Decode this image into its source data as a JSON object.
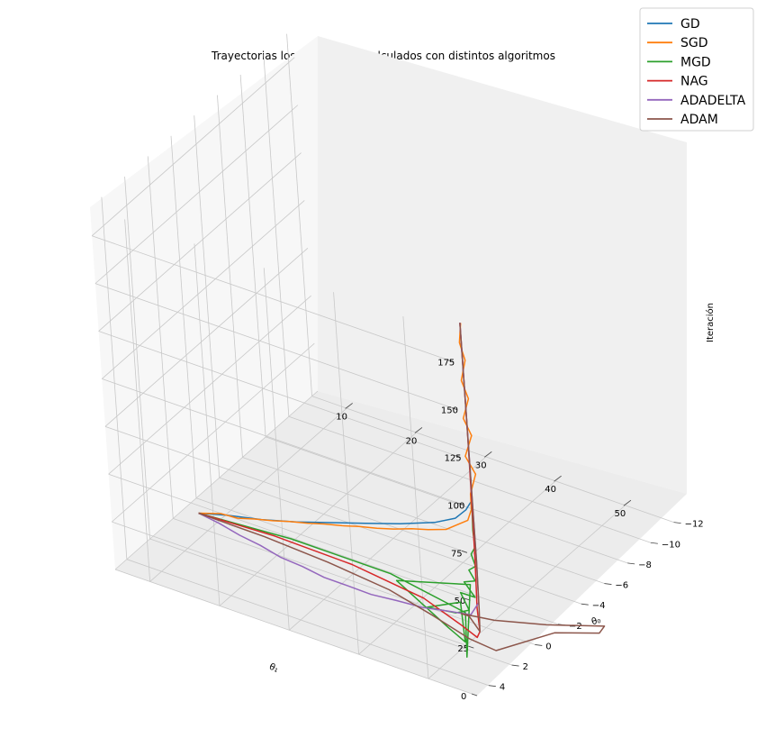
{
  "chart_data": {
    "type": "line",
    "title": "Trayectorias los parámetros calculados con distintos algoritmos",
    "xlabel": "θ₁",
    "ylabel": "θ₀",
    "zlabel": "Iteración",
    "xlim": [
      5,
      57
    ],
    "ylim": [
      -12.5,
      5
    ],
    "zlim": [
      0,
      190
    ],
    "x_ticks": [
      10,
      20,
      30,
      40,
      50
    ],
    "y_ticks": [
      -12,
      -10,
      -8,
      -6,
      -4,
      -2,
      0,
      2,
      4
    ],
    "z_ticks": [
      0,
      25,
      50,
      75,
      100,
      125,
      150,
      175
    ],
    "grid": true,
    "legend_position": "top-right",
    "series": [
      {
        "name": "GD",
        "color": "#1f77b4",
        "points": [
          [
            7,
            -1,
            0
          ],
          [
            12,
            -0.5,
            8
          ],
          [
            18,
            0,
            16
          ],
          [
            24,
            0.5,
            25
          ],
          [
            30,
            1,
            35
          ],
          [
            36,
            1.5,
            45
          ],
          [
            42,
            2,
            55
          ],
          [
            48,
            2.5,
            66
          ],
          [
            52,
            3,
            76
          ],
          [
            54,
            3.2,
            84
          ],
          [
            55,
            3.3,
            90
          ]
        ]
      },
      {
        "name": "SGD",
        "color": "#ff7f0e",
        "points": [
          [
            7,
            -1,
            0
          ],
          [
            11,
            -0.6,
            7
          ],
          [
            14,
            -0.3,
            10
          ],
          [
            17,
            0,
            15
          ],
          [
            20,
            0.2,
            19
          ],
          [
            23,
            0.5,
            24
          ],
          [
            26,
            0.7,
            28
          ],
          [
            29,
            1,
            33
          ],
          [
            32,
            1.2,
            37
          ],
          [
            35,
            1.5,
            42
          ],
          [
            38,
            1.7,
            46
          ],
          [
            41,
            2,
            51
          ],
          [
            44,
            2.2,
            56
          ],
          [
            47,
            2.5,
            61
          ],
          [
            50,
            2.7,
            66
          ],
          [
            52,
            2.9,
            72
          ],
          [
            54,
            3.1,
            78
          ],
          [
            55,
            3.3,
            86
          ],
          [
            55.2,
            3.4,
            95
          ],
          [
            55.8,
            3.2,
            105
          ],
          [
            55,
            3.5,
            115
          ],
          [
            55.6,
            3.2,
            125
          ],
          [
            55.1,
            3.5,
            135
          ],
          [
            55.7,
            3.3,
            145
          ],
          [
            55.2,
            3.5,
            155
          ],
          [
            55.6,
            3.3,
            165
          ],
          [
            55.3,
            3.5,
            175
          ],
          [
            55.5,
            3.4,
            185
          ]
        ]
      },
      {
        "name": "MGD",
        "color": "#2ca02c",
        "points": [
          [
            7,
            -1,
            0
          ],
          [
            20,
            -1.2,
            2
          ],
          [
            35,
            -0.8,
            5
          ],
          [
            48,
            0.5,
            8
          ],
          [
            55,
            4.5,
            15
          ],
          [
            49,
            0.5,
            24
          ],
          [
            40,
            1.5,
            20
          ],
          [
            49,
            2.5,
            12
          ],
          [
            54,
            4,
            19
          ],
          [
            51,
            2.5,
            28
          ],
          [
            47,
            3,
            23
          ],
          [
            52,
            3.5,
            29
          ],
          [
            54,
            3.5,
            33
          ],
          [
            52,
            3,
            37
          ],
          [
            55,
            3.5,
            41
          ],
          [
            53,
            3.2,
            45
          ],
          [
            55,
            3.4,
            49
          ],
          [
            54,
            3.3,
            53
          ],
          [
            55.2,
            3.4,
            57
          ],
          [
            54.5,
            3.3,
            62
          ],
          [
            55.3,
            3.4,
            67
          ],
          [
            55,
            3.3,
            75
          ],
          [
            55.3,
            3.4,
            90
          ]
        ]
      },
      {
        "name": "NAG",
        "color": "#d62728",
        "points": [
          [
            7,
            -1,
            0
          ],
          [
            18,
            -1,
            2
          ],
          [
            30,
            -0.5,
            5
          ],
          [
            42,
            0.5,
            8
          ],
          [
            50,
            2,
            12
          ],
          [
            54,
            3,
            16
          ],
          [
            55,
            3.3,
            22
          ],
          [
            55,
            3.4,
            35
          ],
          [
            55.2,
            3.4,
            60
          ],
          [
            55.3,
            3.4,
            90
          ],
          [
            55.4,
            3.4,
            130
          ],
          [
            55.4,
            3.4,
            185
          ]
        ]
      },
      {
        "name": "ADADELTA",
        "color": "#9467bd",
        "points": [
          [
            7,
            -1,
            0
          ],
          [
            11,
            -0.4,
            3
          ],
          [
            15,
            0.2,
            5
          ],
          [
            19,
            0.8,
            8
          ],
          [
            23,
            1.4,
            10
          ],
          [
            27,
            1.9,
            13
          ],
          [
            31,
            2.4,
            15
          ],
          [
            35,
            2.8,
            18
          ],
          [
            39,
            3.1,
            20
          ],
          [
            43,
            3.3,
            23
          ],
          [
            47,
            3.4,
            25
          ],
          [
            51,
            3.4,
            28
          ],
          [
            54,
            3.4,
            30
          ],
          [
            55.3,
            3.4,
            38
          ],
          [
            55.4,
            3.4,
            60
          ],
          [
            55.4,
            3.4,
            90
          ],
          [
            55.4,
            3.4,
            120
          ],
          [
            55.4,
            3.4,
            150
          ],
          [
            55.4,
            3.4,
            185
          ]
        ]
      },
      {
        "name": "ADAM",
        "color": "#8c564b",
        "points": [
          [
            7,
            -1,
            0
          ],
          [
            17,
            -0.7,
            2
          ],
          [
            27,
            -0.2,
            4
          ],
          [
            37,
            0.5,
            6
          ],
          [
            45,
            1.5,
            8
          ],
          [
            52,
            2.5,
            10
          ],
          [
            57,
            3.2,
            14
          ],
          [
            60,
            0,
            10
          ],
          [
            63,
            -2,
            3
          ],
          [
            62,
            -3,
            0
          ],
          [
            58,
            -0.5,
            9
          ],
          [
            54,
            1.5,
            17
          ],
          [
            51,
            2.5,
            22
          ],
          [
            53,
            3,
            26
          ],
          [
            55,
            3.3,
            22
          ],
          [
            55.3,
            3.4,
            35
          ],
          [
            55.4,
            3.4,
            60
          ],
          [
            55.4,
            3.4,
            120
          ],
          [
            55.4,
            3.4,
            185
          ]
        ]
      }
    ]
  }
}
